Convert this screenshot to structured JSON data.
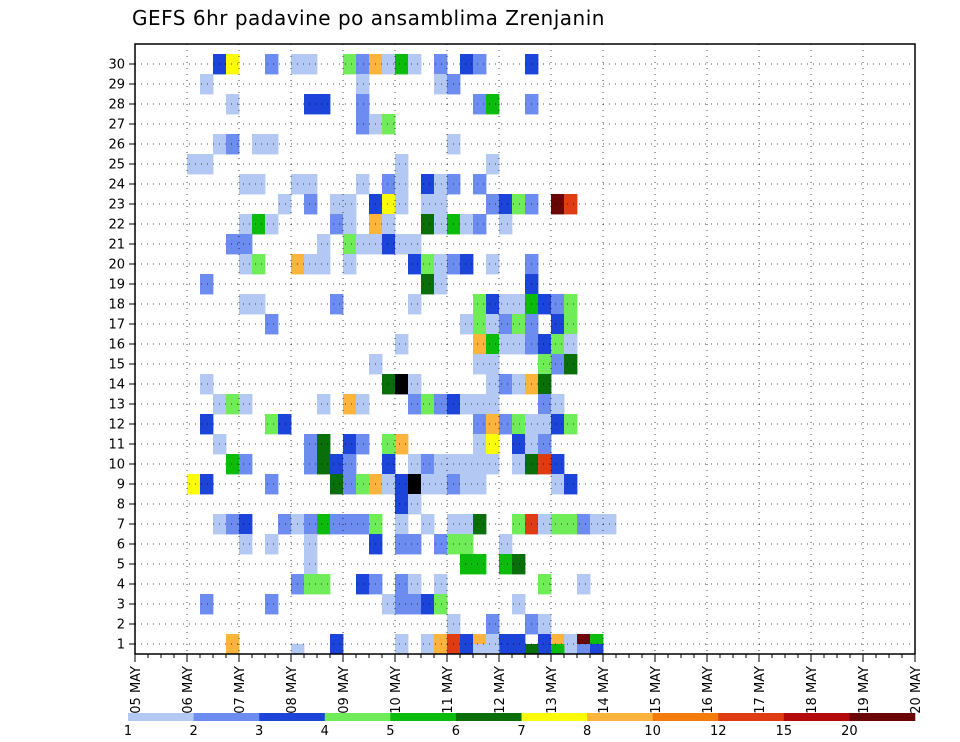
{
  "chart_data": {
    "type": "heatmap",
    "title": "GEFS 6hr padavine po ansamblima Zrenjanin",
    "xlabel": "",
    "ylabel": "",
    "x_ticks": [
      "05 MAY",
      "06 MAY",
      "07 MAY",
      "08 MAY",
      "09 MAY",
      "10 MAY",
      "11 MAY",
      "12 MAY",
      "13 MAY",
      "14 MAY",
      "15 MAY",
      "16 MAY",
      "17 MAY",
      "18 MAY",
      "19 MAY",
      "20 MAY"
    ],
    "y_ticks": [
      1,
      2,
      3,
      4,
      5,
      6,
      7,
      8,
      9,
      10,
      11,
      12,
      13,
      14,
      15,
      16,
      17,
      18,
      19,
      20,
      21,
      22,
      23,
      24,
      25,
      26,
      27,
      28,
      29,
      30
    ],
    "time_steps_per_day": 4,
    "grid": "dotted",
    "colorbar": {
      "levels": [
        "1",
        "2",
        "3",
        "4",
        "5",
        "6",
        "7",
        "8",
        "10",
        "12",
        "15",
        "20"
      ],
      "colors": [
        "#b4c8f4",
        "#6c8cf0",
        "#1c44d8",
        "#70ec58",
        "#0cbc0c",
        "#0a6e0a",
        "#fcfc0a",
        "#fcb43c",
        "#f47c0c",
        "#e03c14",
        "#b40a0a",
        "#6a0606"
      ]
    },
    "cells": [
      [
        30,
        6,
        3
      ],
      [
        30,
        7,
        7
      ],
      [
        30,
        10,
        2
      ],
      [
        30,
        12,
        1
      ],
      [
        30,
        13,
        1
      ],
      [
        30,
        16,
        4
      ],
      [
        30,
        17,
        2
      ],
      [
        30,
        18,
        8
      ],
      [
        30,
        19,
        1
      ],
      [
        30,
        20,
        5
      ],
      [
        30,
        21,
        1
      ],
      [
        30,
        23,
        2
      ],
      [
        30,
        25,
        3
      ],
      [
        30,
        26,
        2
      ],
      [
        30,
        30,
        3
      ],
      [
        29,
        5,
        1
      ],
      [
        29,
        17,
        1
      ],
      [
        29,
        23,
        1
      ],
      [
        29,
        24,
        2
      ],
      [
        28,
        7,
        1
      ],
      [
        28,
        13,
        3
      ],
      [
        28,
        14,
        3
      ],
      [
        28,
        17,
        2
      ],
      [
        28,
        26,
        2
      ],
      [
        28,
        27,
        5
      ],
      [
        28,
        30,
        2
      ],
      [
        27,
        17,
        2
      ],
      [
        27,
        18,
        1
      ],
      [
        27,
        19,
        4
      ],
      [
        26,
        6,
        1
      ],
      [
        26,
        7,
        2
      ],
      [
        26,
        9,
        1
      ],
      [
        26,
        10,
        1
      ],
      [
        26,
        24,
        1
      ],
      [
        25,
        4,
        1
      ],
      [
        25,
        5,
        1
      ],
      [
        25,
        20,
        1
      ],
      [
        25,
        27,
        1
      ],
      [
        24,
        8,
        1
      ],
      [
        24,
        9,
        1
      ],
      [
        24,
        12,
        1
      ],
      [
        24,
        13,
        1
      ],
      [
        24,
        17,
        1
      ],
      [
        24,
        19,
        2
      ],
      [
        24,
        20,
        1
      ],
      [
        24,
        22,
        3
      ],
      [
        24,
        23,
        1
      ],
      [
        24,
        24,
        2
      ],
      [
        24,
        26,
        2
      ],
      [
        23,
        11,
        1
      ],
      [
        23,
        13,
        2
      ],
      [
        23,
        15,
        1
      ],
      [
        23,
        16,
        1
      ],
      [
        23,
        18,
        3
      ],
      [
        23,
        19,
        7
      ],
      [
        23,
        20,
        1
      ],
      [
        23,
        22,
        1
      ],
      [
        23,
        23,
        1
      ],
      [
        23,
        27,
        2
      ],
      [
        23,
        28,
        3
      ],
      [
        23,
        29,
        4
      ],
      [
        23,
        30,
        2
      ],
      [
        23,
        32,
        12
      ],
      [
        23,
        33,
        10
      ],
      [
        22,
        8,
        1
      ],
      [
        22,
        9,
        5
      ],
      [
        22,
        10,
        1
      ],
      [
        22,
        15,
        2
      ],
      [
        22,
        16,
        1
      ],
      [
        22,
        18,
        8
      ],
      [
        22,
        19,
        1
      ],
      [
        22,
        22,
        6
      ],
      [
        22,
        23,
        1
      ],
      [
        22,
        24,
        5
      ],
      [
        22,
        25,
        1
      ],
      [
        22,
        26,
        2
      ],
      [
        22,
        28,
        1
      ],
      [
        21,
        7,
        2
      ],
      [
        21,
        8,
        2
      ],
      [
        21,
        14,
        1
      ],
      [
        21,
        16,
        4
      ],
      [
        21,
        17,
        1
      ],
      [
        21,
        18,
        1
      ],
      [
        21,
        19,
        3
      ],
      [
        21,
        20,
        1
      ],
      [
        21,
        21,
        1
      ],
      [
        20,
        8,
        1
      ],
      [
        20,
        9,
        4
      ],
      [
        20,
        12,
        8
      ],
      [
        20,
        13,
        1
      ],
      [
        20,
        14,
        1
      ],
      [
        20,
        16,
        1
      ],
      [
        20,
        21,
        3
      ],
      [
        20,
        22,
        4
      ],
      [
        20,
        23,
        1
      ],
      [
        20,
        24,
        2
      ],
      [
        20,
        25,
        3
      ],
      [
        20,
        27,
        1
      ],
      [
        20,
        30,
        2
      ],
      [
        19,
        5,
        2
      ],
      [
        19,
        22,
        6
      ],
      [
        19,
        23,
        1
      ],
      [
        19,
        30,
        3
      ],
      [
        18,
        8,
        1
      ],
      [
        18,
        9,
        1
      ],
      [
        18,
        15,
        2
      ],
      [
        18,
        21,
        1
      ],
      [
        18,
        26,
        4
      ],
      [
        18,
        27,
        3
      ],
      [
        18,
        28,
        1
      ],
      [
        18,
        29,
        1
      ],
      [
        18,
        30,
        5
      ],
      [
        18,
        31,
        3
      ],
      [
        18,
        32,
        2
      ],
      [
        18,
        33,
        4
      ],
      [
        17,
        10,
        2
      ],
      [
        17,
        25,
        1
      ],
      [
        17,
        26,
        4
      ],
      [
        17,
        27,
        1
      ],
      [
        17,
        28,
        2
      ],
      [
        17,
        29,
        4
      ],
      [
        17,
        30,
        2
      ],
      [
        17,
        32,
        3
      ],
      [
        17,
        33,
        4
      ],
      [
        16,
        20,
        1
      ],
      [
        16,
        26,
        8
      ],
      [
        16,
        27,
        5
      ],
      [
        16,
        28,
        1
      ],
      [
        16,
        29,
        1
      ],
      [
        16,
        30,
        2
      ],
      [
        16,
        31,
        3
      ],
      [
        16,
        32,
        4
      ],
      [
        16,
        33,
        1
      ],
      [
        15,
        18,
        1
      ],
      [
        15,
        26,
        1
      ],
      [
        15,
        27,
        1
      ],
      [
        15,
        31,
        4
      ],
      [
        15,
        32,
        2
      ],
      [
        15,
        33,
        6
      ],
      [
        14,
        5,
        1
      ],
      [
        14,
        19,
        6
      ],
      [
        14,
        20,
        14
      ],
      [
        14,
        21,
        1
      ],
      [
        14,
        27,
        1
      ],
      [
        14,
        28,
        2
      ],
      [
        14,
        29,
        1
      ],
      [
        14,
        30,
        8
      ],
      [
        14,
        31,
        6
      ],
      [
        13,
        6,
        1
      ],
      [
        13,
        7,
        4
      ],
      [
        13,
        8,
        1
      ],
      [
        13,
        14,
        1
      ],
      [
        13,
        16,
        8
      ],
      [
        13,
        17,
        1
      ],
      [
        13,
        21,
        2
      ],
      [
        13,
        22,
        4
      ],
      [
        13,
        23,
        2
      ],
      [
        13,
        24,
        3
      ],
      [
        13,
        25,
        1
      ],
      [
        13,
        26,
        1
      ],
      [
        13,
        27,
        1
      ],
      [
        13,
        31,
        2
      ],
      [
        13,
        32,
        1
      ],
      [
        12,
        5,
        3
      ],
      [
        12,
        10,
        4
      ],
      [
        12,
        11,
        3
      ],
      [
        12,
        26,
        2
      ],
      [
        12,
        27,
        8
      ],
      [
        12,
        28,
        2
      ],
      [
        12,
        29,
        4
      ],
      [
        12,
        30,
        1
      ],
      [
        12,
        31,
        1
      ],
      [
        12,
        32,
        3
      ],
      [
        12,
        33,
        4
      ],
      [
        11,
        6,
        1
      ],
      [
        11,
        13,
        2
      ],
      [
        11,
        14,
        6
      ],
      [
        11,
        16,
        3
      ],
      [
        11,
        17,
        2
      ],
      [
        11,
        19,
        4
      ],
      [
        11,
        20,
        8
      ],
      [
        11,
        26,
        1
      ],
      [
        11,
        27,
        7
      ],
      [
        11,
        29,
        3
      ],
      [
        11,
        30,
        1
      ],
      [
        11,
        31,
        2
      ],
      [
        10,
        7,
        5
      ],
      [
        10,
        8,
        2
      ],
      [
        10,
        13,
        2
      ],
      [
        10,
        14,
        6
      ],
      [
        10,
        15,
        3
      ],
      [
        10,
        16,
        2
      ],
      [
        10,
        19,
        3
      ],
      [
        10,
        21,
        1
      ],
      [
        10,
        22,
        2
      ],
      [
        10,
        23,
        1
      ],
      [
        10,
        24,
        1
      ],
      [
        10,
        25,
        1
      ],
      [
        10,
        26,
        1
      ],
      [
        10,
        27,
        1
      ],
      [
        10,
        29,
        1
      ],
      [
        10,
        30,
        6
      ],
      [
        10,
        31,
        10
      ],
      [
        10,
        32,
        3
      ],
      [
        9,
        4,
        7
      ],
      [
        9,
        5,
        3
      ],
      [
        9,
        10,
        2
      ],
      [
        9,
        15,
        6
      ],
      [
        9,
        16,
        2
      ],
      [
        9,
        17,
        4
      ],
      [
        9,
        18,
        8
      ],
      [
        9,
        19,
        1
      ],
      [
        9,
        20,
        3
      ],
      [
        9,
        21,
        14
      ],
      [
        9,
        22,
        1
      ],
      [
        9,
        23,
        1
      ],
      [
        9,
        24,
        2
      ],
      [
        9,
        25,
        1
      ],
      [
        9,
        26,
        1
      ],
      [
        9,
        32,
        1
      ],
      [
        9,
        33,
        3
      ],
      [
        8,
        20,
        3
      ],
      [
        8,
        21,
        1
      ],
      [
        7,
        6,
        1
      ],
      [
        7,
        7,
        2
      ],
      [
        7,
        8,
        3
      ],
      [
        7,
        11,
        2
      ],
      [
        7,
        12,
        1
      ],
      [
        7,
        13,
        2
      ],
      [
        7,
        14,
        5
      ],
      [
        7,
        15,
        2
      ],
      [
        7,
        16,
        2
      ],
      [
        7,
        17,
        2
      ],
      [
        7,
        18,
        4
      ],
      [
        7,
        20,
        1
      ],
      [
        7,
        22,
        1
      ],
      [
        7,
        24,
        1
      ],
      [
        7,
        25,
        1
      ],
      [
        7,
        26,
        6
      ],
      [
        7,
        29,
        4
      ],
      [
        7,
        30,
        10
      ],
      [
        7,
        31,
        1
      ],
      [
        7,
        32,
        4
      ],
      [
        7,
        33,
        4
      ],
      [
        7,
        34,
        2
      ],
      [
        7,
        35,
        1
      ],
      [
        7,
        36,
        1
      ],
      [
        6,
        8,
        1
      ],
      [
        6,
        10,
        1
      ],
      [
        6,
        13,
        1
      ],
      [
        6,
        18,
        3
      ],
      [
        6,
        20,
        2
      ],
      [
        6,
        21,
        2
      ],
      [
        6,
        23,
        2
      ],
      [
        6,
        24,
        4
      ],
      [
        6,
        25,
        4
      ],
      [
        6,
        28,
        1
      ],
      [
        5,
        13,
        1
      ],
      [
        5,
        25,
        5
      ],
      [
        5,
        26,
        5
      ],
      [
        5,
        28,
        5
      ],
      [
        5,
        29,
        6
      ],
      [
        4,
        12,
        2
      ],
      [
        4,
        13,
        4
      ],
      [
        4,
        14,
        4
      ],
      [
        4,
        17,
        3
      ],
      [
        4,
        18,
        2
      ],
      [
        4,
        20,
        2
      ],
      [
        4,
        21,
        1
      ],
      [
        4,
        23,
        1
      ],
      [
        4,
        31,
        4
      ],
      [
        4,
        34,
        1
      ],
      [
        3,
        5,
        2
      ],
      [
        3,
        10,
        2
      ],
      [
        3,
        19,
        1
      ],
      [
        3,
        20,
        2
      ],
      [
        3,
        21,
        2
      ],
      [
        3,
        22,
        3
      ],
      [
        3,
        23,
        4
      ],
      [
        3,
        29,
        1
      ],
      [
        2,
        24,
        1
      ],
      [
        2,
        27,
        2
      ],
      [
        2,
        30,
        2
      ],
      [
        2,
        31,
        1
      ],
      [
        1,
        7,
        8
      ],
      [
        1,
        15,
        3
      ],
      [
        1,
        20,
        1
      ],
      [
        1,
        22,
        1
      ],
      [
        1,
        23,
        8
      ],
      [
        1,
        24,
        10
      ],
      [
        1,
        25,
        3
      ],
      [
        1,
        26,
        8
      ],
      [
        1,
        27,
        1
      ],
      [
        1,
        28,
        3
      ],
      [
        1,
        29,
        3
      ],
      [
        1,
        31,
        3
      ],
      [
        1,
        32,
        8
      ],
      [
        1,
        33,
        1
      ],
      [
        1,
        34,
        12
      ],
      [
        1,
        35,
        5
      ],
      [
        0,
        12,
        1
      ],
      [
        0,
        26,
        1
      ],
      [
        0,
        27,
        1
      ],
      [
        0,
        30,
        6
      ],
      [
        0,
        32,
        5
      ],
      [
        0,
        34,
        2
      ],
      [
        0,
        35,
        3
      ]
    ]
  }
}
